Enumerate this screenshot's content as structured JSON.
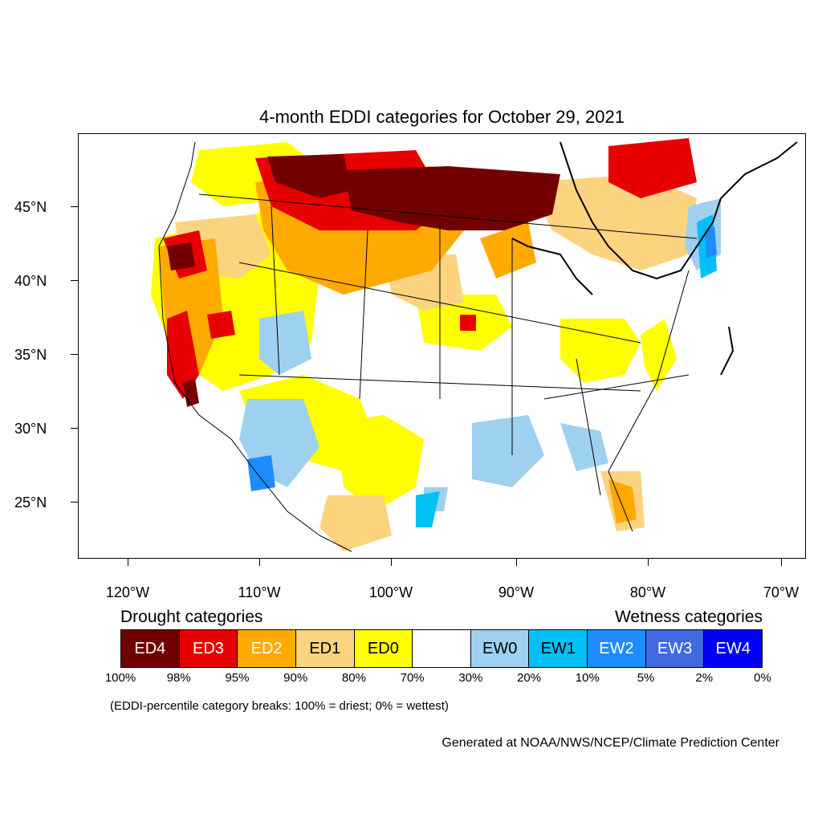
{
  "title": "4-month EDDI categories for October 29, 2021",
  "axes": {
    "y_labels": [
      "45°N",
      "40°N",
      "35°N",
      "30°N",
      "25°N"
    ],
    "x_labels": [
      "120°W",
      "110°W",
      "100°W",
      "90°W",
      "80°W",
      "70°W"
    ]
  },
  "legend": {
    "drought_heading": "Drought categories",
    "wetness_heading": "Wetness categories",
    "categories": [
      {
        "label": "ED4",
        "color": "#730000",
        "text_color": "#ffffff"
      },
      {
        "label": "ED3",
        "color": "#e60000",
        "text_color": "#ffffff"
      },
      {
        "label": "ED2",
        "color": "#ffaa00",
        "text_color": "#ffffff"
      },
      {
        "label": "ED1",
        "color": "#fcd37f",
        "text_color": "#000000"
      },
      {
        "label": "ED0",
        "color": "#ffff00",
        "text_color": "#000000"
      },
      {
        "label": "",
        "color": "#ffffff",
        "text_color": "#000000"
      },
      {
        "label": "EW0",
        "color": "#9ed0f0",
        "text_color": "#000000"
      },
      {
        "label": "EW1",
        "color": "#00c0f5",
        "text_color": "#000000"
      },
      {
        "label": "EW2",
        "color": "#1e8cff",
        "text_color": "#ffffff"
      },
      {
        "label": "EW3",
        "color": "#4169e1",
        "text_color": "#ffffff"
      },
      {
        "label": "EW4",
        "color": "#0000f5",
        "text_color": "#ffffff"
      }
    ],
    "percent_breaks": [
      "100%",
      "98%",
      "95%",
      "90%",
      "80%",
      "70%",
      "30%",
      "20%",
      "10%",
      "5%",
      "2%",
      "0%"
    ]
  },
  "note": "(EDDI-percentile category breaks: 100% = driest; 0% = wettest)",
  "credit": "Generated at NOAA/NWS/NCEP/Climate Prediction Center"
}
